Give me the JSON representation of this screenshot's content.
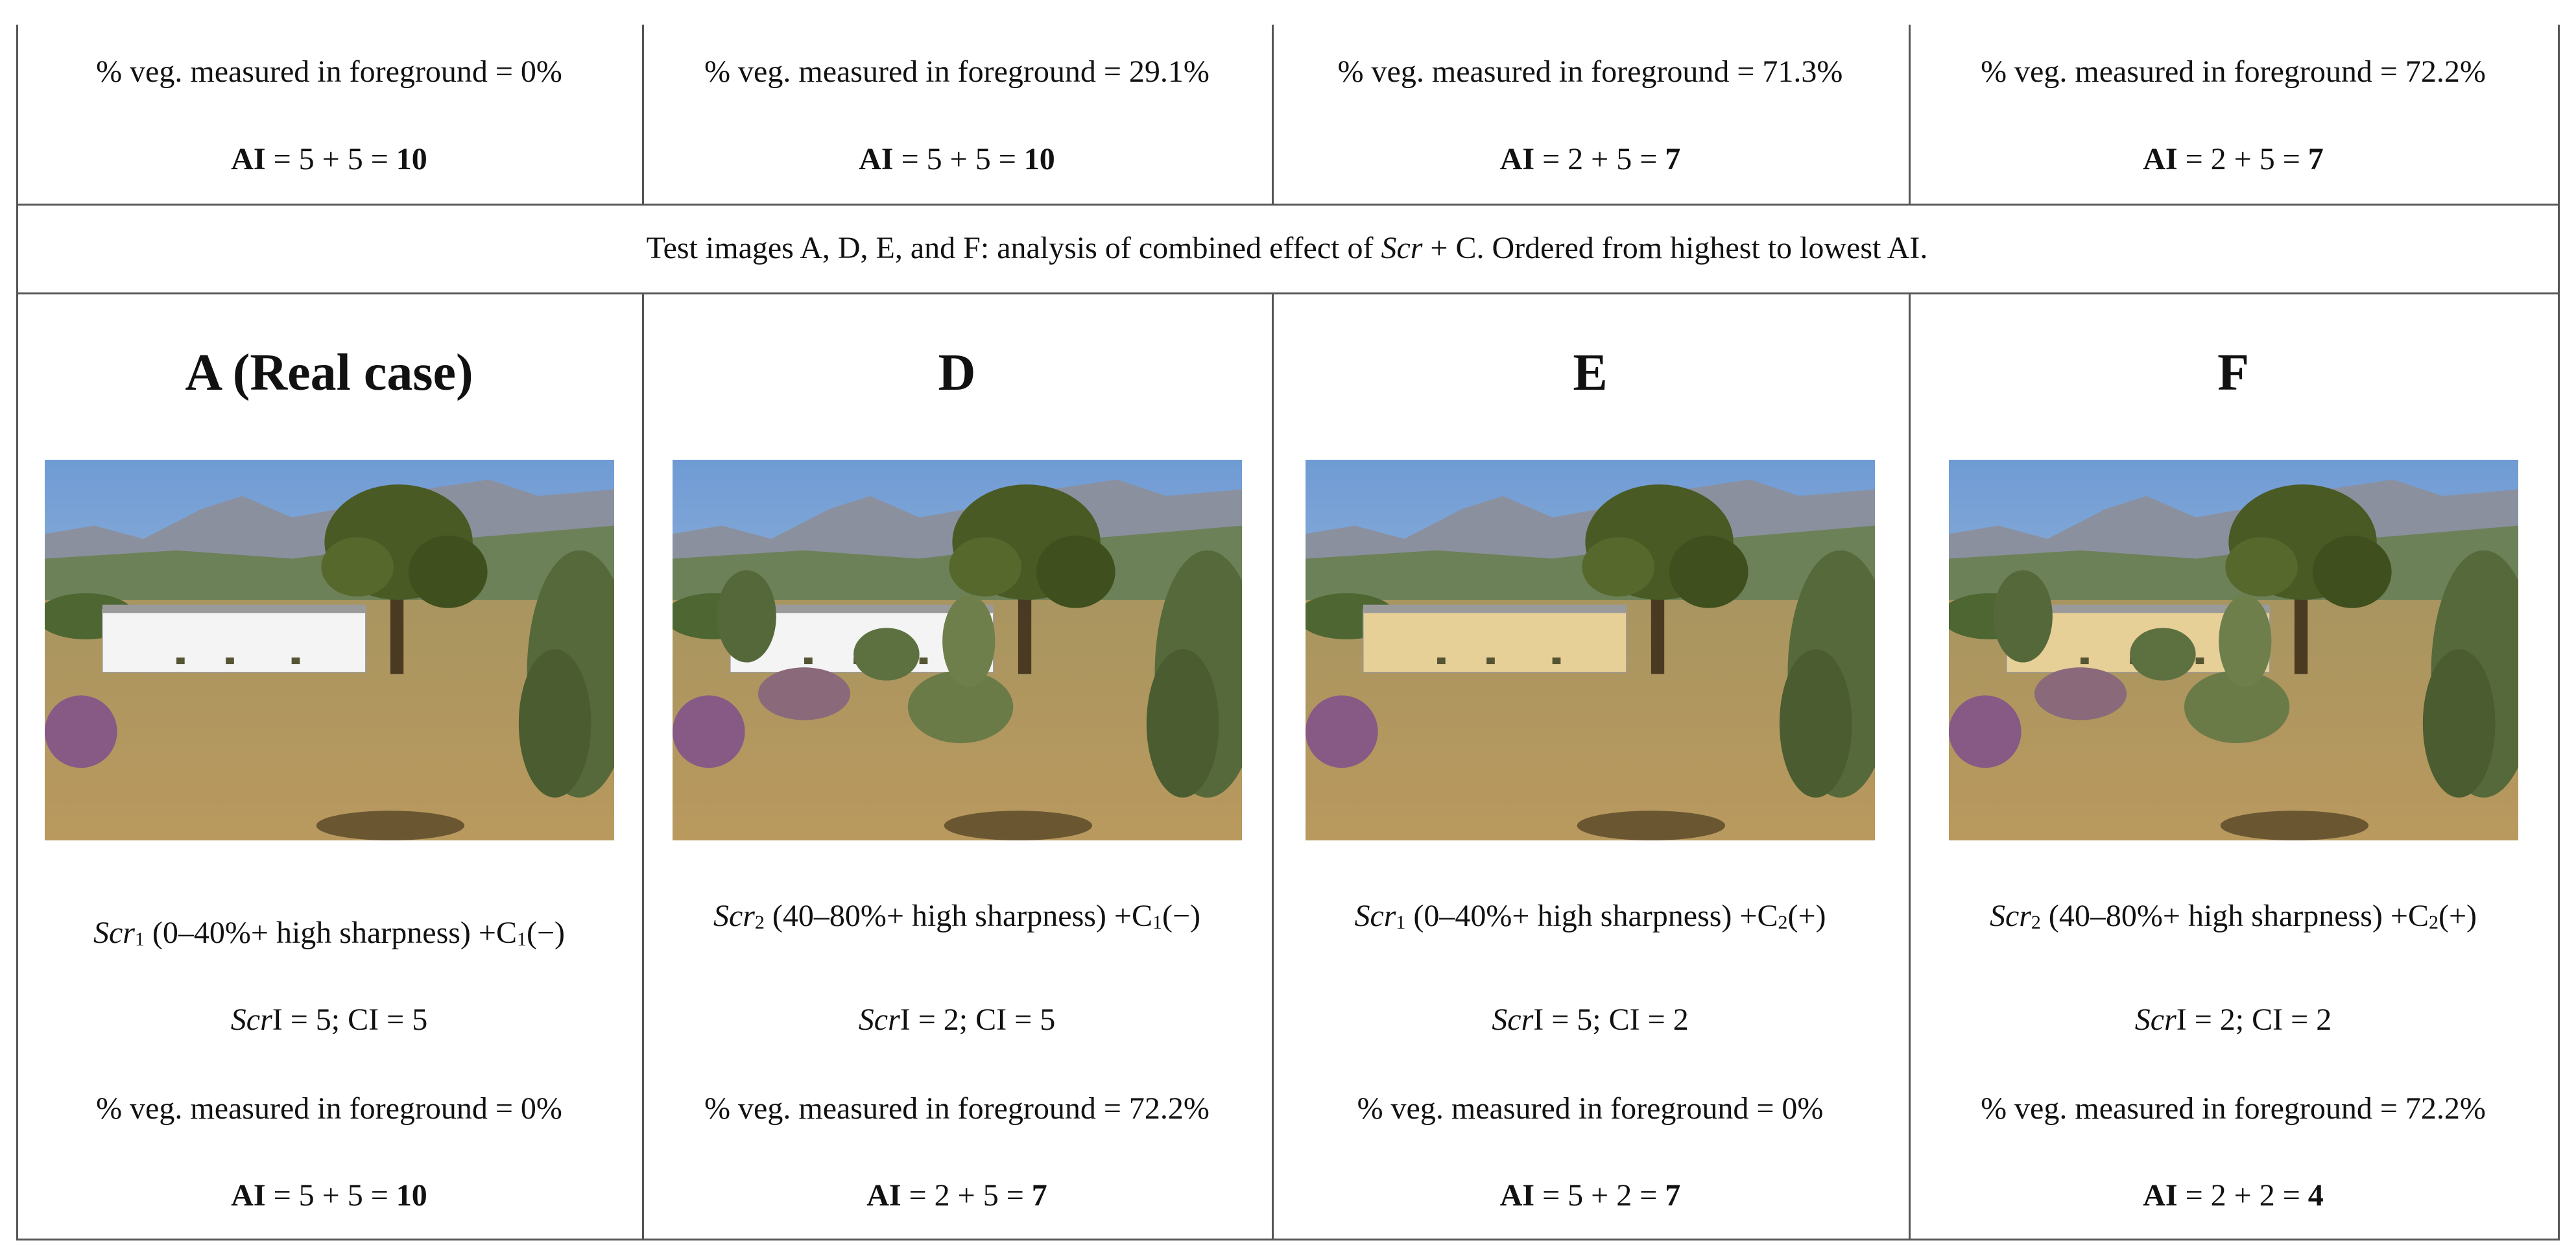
{
  "top_row": [
    {
      "veg": "% veg. measured in foreground = 0%",
      "ai_label": "AI",
      "ai_expr": " = 5 + 5 = ",
      "ai_total": "10"
    },
    {
      "veg": "% veg. measured in foreground = 29.1%",
      "ai_label": "AI",
      "ai_expr": " = 5 + 5 = ",
      "ai_total": "10"
    },
    {
      "veg": "% veg. measured in foreground = 71.3%",
      "ai_label": "AI",
      "ai_expr": " = 2 + 5 = ",
      "ai_total": "7"
    },
    {
      "veg": "% veg. measured in foreground = 72.2%",
      "ai_label": "AI",
      "ai_expr": " = 2 + 5 = ",
      "ai_total": "7"
    }
  ],
  "caption": {
    "before": "Test images A, D, E, and F: analysis of combined effect of ",
    "italic": "Scr",
    "after": " + C. Ordered from highest to lowest AI."
  },
  "panels": [
    {
      "title": "A (Real case)",
      "scr": "Scr",
      "scr_sub": "1",
      "desc": " (0–40%+ high sharpness) +C",
      "c_sub": "1",
      "sign": "(−)",
      "index_scr": "Scr",
      "index_rest": "I = 5; CI = 5",
      "veg": "% veg. measured in foreground = 0%",
      "ai_label": "AI",
      "ai_expr": " = 5 + 5 = ",
      "ai_total": "10"
    },
    {
      "title": "D",
      "scr": "Scr",
      "scr_sub": "2",
      "desc": " (40–80%+ high sharpness) +C",
      "c_sub": "1",
      "sign": "(−)",
      "index_scr": "Scr",
      "index_rest": "I = 2; CI = 5",
      "veg": "% veg. measured in foreground = 72.2%",
      "ai_label": "AI",
      "ai_expr": " = 2 + 5 = ",
      "ai_total": "7"
    },
    {
      "title": "E",
      "scr": "Scr",
      "scr_sub": "1",
      "desc": " (0–40%+ high sharpness) +C",
      "c_sub": "2",
      "sign": "(+)",
      "index_scr": "Scr",
      "index_rest": "I = 5; CI = 2",
      "veg": "% veg. measured in foreground = 0%",
      "ai_label": "AI",
      "ai_expr": " = 5 + 2 = ",
      "ai_total": "7"
    },
    {
      "title": "F",
      "scr": "Scr",
      "scr_sub": "2",
      "desc": " (40–80%+ high sharpness) +C",
      "c_sub": "2",
      "sign": "(+)",
      "index_scr": "Scr",
      "index_rest": "I = 2; CI = 2",
      "veg": "% veg. measured in foreground = 72.2%",
      "ai_label": "AI",
      "ai_expr": " = 2 + 2 = ",
      "ai_total": "4"
    }
  ]
}
